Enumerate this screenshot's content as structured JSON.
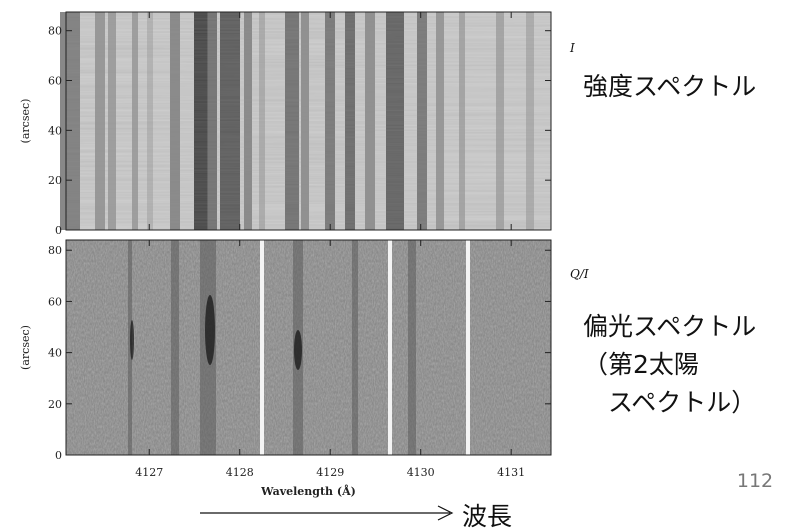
{
  "panels": [
    {
      "ylabel": "(arcsec)",
      "ylim": [
        0,
        87.5
      ],
      "yticks": [
        0,
        20,
        40,
        60,
        80
      ],
      "stokes": "I",
      "caption": [
        "強度スペクトル"
      ]
    },
    {
      "ylabel": "(arcsec)",
      "ylim": [
        0,
        84
      ],
      "yticks": [
        0,
        20,
        40,
        60,
        80
      ],
      "stokes": "Q/I",
      "caption": [
        "偏光スペクトル",
        "（第2太陽",
        "　スペクトル）"
      ]
    }
  ],
  "xaxis": {
    "label": "Wavelength (Å)",
    "xlim": [
      4126.08,
      4131.44
    ],
    "xticks": [
      4127,
      4128,
      4129,
      4130,
      4131
    ]
  },
  "page_number": "112",
  "arrow_label": "波長"
}
